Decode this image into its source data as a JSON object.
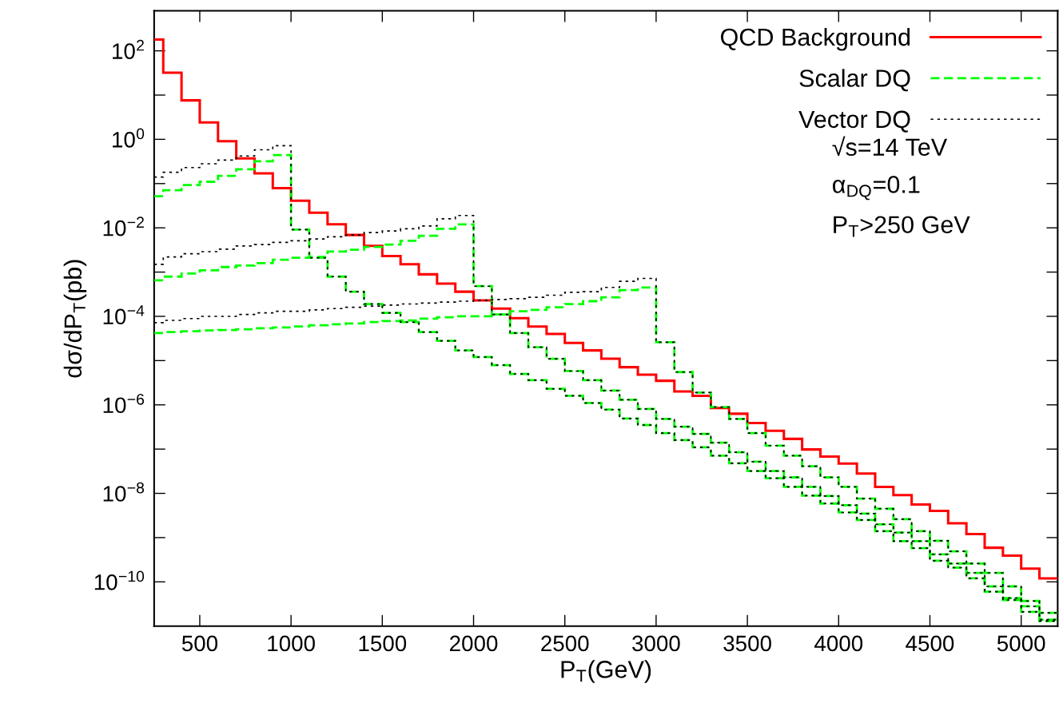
{
  "chart_data": {
    "type": "histogram",
    "xlabel": "P$_{T}$(GeV)",
    "ylabel": "dσ/dP$_{T}$(pb)",
    "annotations": [
      "√s=14 TeV",
      "α$_{DQ}$=0.1",
      "P$_{T}$>250 GeV"
    ],
    "log": "y",
    "legend": "top right",
    "grid": false,
    "xlim": [
      250,
      5200
    ],
    "xticks": [
      500,
      1000,
      1500,
      2000,
      2500,
      3000,
      3500,
      4000,
      4500,
      5000
    ],
    "ylim": [
      1e-11,
      800
    ],
    "yticks": [
      {
        "value": 100,
        "label": "10$^{2}$"
      },
      {
        "value": 10,
        "label": null
      },
      {
        "value": 1,
        "label": "10$^{0}$"
      },
      {
        "value": 0.1,
        "label": null
      },
      {
        "value": 0.01,
        "label": "10$^{−2}$"
      },
      {
        "value": 0.001,
        "label": null
      },
      {
        "value": 0.0001,
        "label": "10$^{−4}$"
      },
      {
        "value": 1e-05,
        "label": null
      },
      {
        "value": 1e-06,
        "label": "10$^{−6}$"
      },
      {
        "value": 1e-07,
        "label": null
      },
      {
        "value": 1e-08,
        "label": "10$^{−8}$"
      },
      {
        "value": 1e-09,
        "label": null
      },
      {
        "value": 1e-10,
        "label": "10$^{−10}$"
      }
    ],
    "bins": [
      250,
      300,
      400,
      500,
      600,
      700,
      800,
      900,
      1000,
      1100,
      1200,
      1300,
      1400,
      1500,
      1600,
      1700,
      1800,
      1900,
      2000,
      2100,
      2200,
      2300,
      2400,
      2500,
      2600,
      2700,
      2800,
      2900,
      3000,
      3100,
      3200,
      3300,
      3400,
      3500,
      3600,
      3700,
      3800,
      3900,
      4000,
      4100,
      4200,
      4300,
      4400,
      4500,
      4600,
      4700,
      4800,
      4900,
      5000,
      5100,
      5200
    ],
    "series": [
      {
        "name": "QCD Background",
        "color": "#ff0000",
        "line_style": "solid",
        "values": [
          180,
          32,
          7.6,
          2.4,
          0.91,
          0.37,
          0.17,
          0.079,
          0.041,
          0.022,
          0.012,
          0.0069,
          0.0039,
          0.0023,
          0.0015,
          0.00089,
          0.00055,
          0.00036,
          0.00023,
          0.00015,
          9.1e-05,
          5.9e-05,
          4e-05,
          2.5e-05,
          1.7e-05,
          1.1e-05,
          7.1e-06,
          4.8e-06,
          3.5e-06,
          2e-06,
          1.6e-06,
          8.5e-07,
          6.3e-07,
          3.9e-07,
          2.6e-07,
          1.7e-07,
          9.8e-08,
          6.8e-08,
          4.7e-08,
          2.8e-08,
          1.4e-08,
          9.1e-09,
          5.6e-09,
          4e-09,
          2.1e-09,
          1.2e-09,
          5.9e-10,
          3.9e-10,
          2e-10,
          1.2e-10
        ]
      },
      {
        "name": "Scalar DQ",
        "color": "#00ff00",
        "line_style": "dashed",
        "values": [
          0.052,
          0.071,
          0.093,
          0.11,
          0.15,
          0.21,
          0.32,
          0.44,
          0.0091,
          0.0021,
          0.00079,
          0.00036,
          0.00019,
          0.00012,
          7.4e-05,
          4.4e-05,
          2.8e-05,
          1.7e-05,
          1.2e-05,
          7.9e-06,
          5e-06,
          3.6e-06,
          2.3e-06,
          1.6e-06,
          1.1e-06,
          7.8e-07,
          4.9e-07,
          3.5e-07,
          2.3e-07,
          1.6e-07,
          1.1e-07,
          7.1e-08,
          4.8e-08,
          3.2e-08,
          2.2e-08,
          1.4e-08,
          8.9e-09,
          5.9e-09,
          3.7e-09,
          2.5e-09,
          1.4e-09,
          8.3e-10,
          5.8e-10,
          3e-10,
          2.1e-10,
          1.2e-10,
          6e-11,
          3.9e-11,
          2.1e-11,
          1.3e-11
        ]
      },
      {
        "color": "#00ff00",
        "line_style": "dashed",
        "values": [
          0.00065,
          0.00079,
          0.00093,
          0.0011,
          0.0013,
          0.0014,
          0.0016,
          0.0019,
          0.0021,
          0.0022,
          0.0029,
          0.0032,
          0.0037,
          0.0042,
          0.0051,
          0.0066,
          0.0095,
          0.012,
          0.00048,
          0.00011,
          4.2e-05,
          2e-05,
          1.1e-05,
          5.8e-06,
          3.6e-06,
          2.1e-06,
          1.3e-06,
          8.1e-07,
          4.8e-07,
          3.2e-07,
          2.2e-07,
          1.4e-07,
          8.5e-08,
          5.2e-08,
          3.2e-08,
          2.3e-08,
          1.4e-08,
          8.7e-09,
          5.4e-09,
          3.5e-09,
          2e-09,
          1.3e-09,
          8.3e-10,
          4.2e-10,
          2.6e-10,
          1.6e-10,
          7.9e-11,
          4.3e-11,
          2.8e-11,
          1.4e-11
        ]
      },
      {
        "color": "#00ff00",
        "line_style": "dashed",
        "values": [
          4.2e-05,
          4.4e-05,
          4.6e-05,
          4.8e-05,
          4.9e-05,
          5.1e-05,
          5.4e-05,
          5.6e-05,
          5.9e-05,
          6.3e-05,
          6.6e-05,
          6.9e-05,
          7.4e-05,
          7.8e-05,
          8.1e-05,
          8.9e-05,
          9.5e-05,
          0.0001,
          0.0001,
          0.00011,
          0.00013,
          0.00014,
          0.00016,
          0.00019,
          0.00022,
          0.00027,
          0.00039,
          0.00045,
          2.6e-05,
          5.5e-06,
          1.9e-06,
          8.9e-07,
          4.8e-07,
          2.3e-07,
          1.2e-07,
          7.1e-08,
          4.1e-08,
          2.3e-08,
          1.4e-08,
          7.6e-09,
          4.5e-09,
          2.6e-09,
          1.4e-09,
          8.5e-10,
          4.9e-10,
          2.6e-10,
          1.6e-10,
          7.9e-11,
          3.7e-11,
          2e-11
        ]
      },
      {
        "name": "Vector DQ",
        "color": "#000000",
        "line_style": "dotted",
        "values": [
          0.14,
          0.18,
          0.23,
          0.28,
          0.34,
          0.42,
          0.58,
          0.72,
          0.0091,
          0.0021,
          0.00079,
          0.00036,
          0.00019,
          0.00012,
          7.4e-05,
          4.4e-05,
          2.8e-05,
          1.7e-05,
          1.2e-05,
          7.9e-06,
          5e-06,
          3.6e-06,
          2.3e-06,
          1.6e-06,
          1.1e-06,
          7.8e-07,
          4.9e-07,
          3.5e-07,
          2.3e-07,
          1.6e-07,
          1.1e-07,
          7.1e-08,
          4.8e-08,
          3.2e-08,
          2.2e-08,
          1.4e-08,
          8.9e-09,
          5.9e-09,
          3.7e-09,
          2.5e-09,
          1.4e-09,
          8.3e-10,
          5.8e-10,
          3e-10,
          2.1e-10,
          1.2e-10,
          6e-11,
          3.9e-11,
          2.1e-11,
          1.3e-11
        ]
      },
      {
        "color": "#000000",
        "line_style": "dotted",
        "values": [
          0.0015,
          0.0022,
          0.0026,
          0.0029,
          0.0033,
          0.0039,
          0.0042,
          0.0047,
          0.0051,
          0.0056,
          0.0063,
          0.0069,
          0.0078,
          0.0085,
          0.0095,
          0.011,
          0.016,
          0.019,
          0.00048,
          0.00011,
          4.2e-05,
          2e-05,
          1.1e-05,
          5.8e-06,
          3.6e-06,
          2.1e-06,
          1.3e-06,
          8.1e-07,
          4.8e-07,
          3.2e-07,
          2.2e-07,
          1.4e-07,
          8.5e-08,
          5.2e-08,
          3.2e-08,
          2.3e-08,
          1.4e-08,
          8.7e-09,
          5.4e-09,
          3.5e-09,
          2e-09,
          1.3e-09,
          8.3e-10,
          4.2e-10,
          2.6e-10,
          1.6e-10,
          7.9e-11,
          4.3e-11,
          2.8e-11,
          1.4e-11
        ]
      },
      {
        "color": "#000000",
        "line_style": "dotted",
        "values": [
          7.2e-05,
          8.1e-05,
          8.9e-05,
          0.0001,
          0.0001,
          0.00011,
          0.00012,
          0.00013,
          0.00013,
          0.00014,
          0.00015,
          0.00016,
          0.00017,
          0.00018,
          0.00019,
          0.0002,
          0.00021,
          0.00022,
          0.00023,
          0.00024,
          0.00025,
          0.00027,
          0.0003,
          0.00035,
          0.00036,
          0.00045,
          0.00062,
          0.00072,
          2.6e-05,
          5.5e-06,
          1.9e-06,
          8.9e-07,
          4.8e-07,
          2.3e-07,
          1.2e-07,
          7.1e-08,
          4.1e-08,
          2.3e-08,
          1.4e-08,
          7.6e-09,
          4.5e-09,
          2.6e-09,
          1.4e-09,
          8.5e-10,
          4.9e-10,
          2.6e-10,
          1.6e-10,
          7.9e-11,
          3.7e-11,
          2e-11
        ]
      }
    ]
  }
}
